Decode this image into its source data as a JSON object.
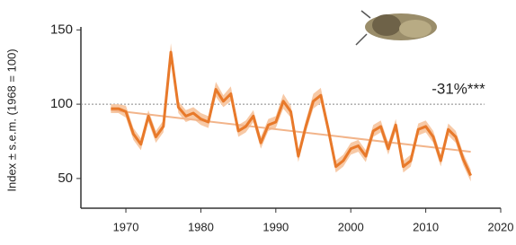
{
  "chart_data": {
    "type": "line",
    "y_label": "Index ± s.e.m. (1968 = 100)",
    "annotation": "-31%***",
    "x": [
      1968,
      1969,
      1970,
      1971,
      1972,
      1973,
      1974,
      1975,
      1976,
      1977,
      1978,
      1979,
      1980,
      1981,
      1982,
      1983,
      1984,
      1985,
      1986,
      1987,
      1988,
      1989,
      1990,
      1991,
      1992,
      1993,
      1994,
      1995,
      1996,
      1997,
      1998,
      1999,
      2000,
      2001,
      2002,
      2003,
      2004,
      2005,
      2006,
      2007,
      2008,
      2009,
      2010,
      2011,
      2012,
      2013,
      2014,
      2015,
      2016
    ],
    "values": [
      97,
      97,
      95,
      80,
      73,
      92,
      78,
      85,
      135,
      98,
      92,
      94,
      90,
      88,
      110,
      102,
      107,
      82,
      85,
      92,
      74,
      86,
      88,
      102,
      95,
      65,
      85,
      102,
      106,
      83,
      58,
      62,
      70,
      72,
      65,
      82,
      85,
      70,
      86,
      58,
      62,
      83,
      85,
      78,
      62,
      83,
      78,
      63,
      52
    ],
    "errors": [
      3,
      3,
      4,
      4,
      4,
      4,
      4,
      4,
      6,
      4,
      4,
      4,
      4,
      4,
      5,
      4,
      5,
      4,
      4,
      4,
      4,
      4,
      4,
      5,
      4,
      4,
      4,
      5,
      5,
      4,
      4,
      4,
      4,
      4,
      4,
      4,
      4,
      4,
      4,
      4,
      4,
      4,
      4,
      4,
      4,
      4,
      4,
      4,
      4
    ],
    "color": "#e8792a",
    "band_color": "#f7c9a6",
    "trend": {
      "x": [
        1968,
        2016
      ],
      "values": [
        96,
        68
      ],
      "color": "#f2b48a"
    },
    "reference_line": 100,
    "xlim": [
      1964,
      2020
    ],
    "ylim": [
      30,
      152
    ],
    "xticks": [
      1970,
      1980,
      1990,
      2000,
      2010,
      2020
    ],
    "yticks": [
      50,
      100,
      150
    ]
  }
}
